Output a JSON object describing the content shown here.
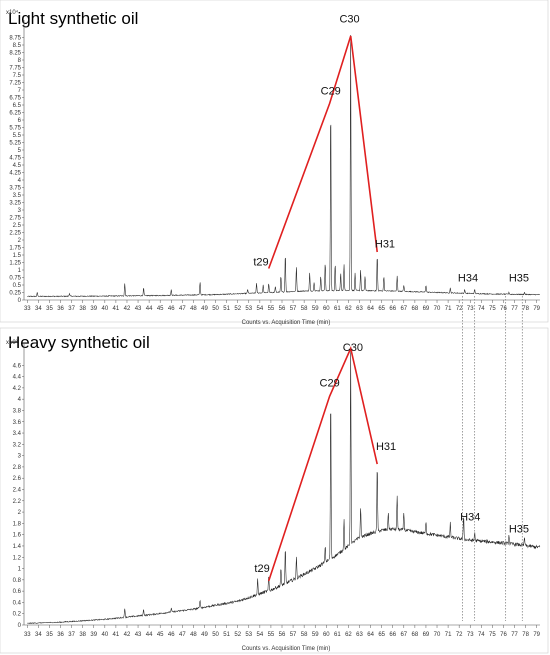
{
  "chart_data": [
    {
      "type": "line",
      "title": "Light synthetic oil",
      "xlabel": "Counts vs. Acquisition Time (min)",
      "y_scale_label": "x10⁴",
      "xlim": [
        32.7,
        79.3
      ],
      "ylim": [
        0,
        9
      ],
      "x_ticks": [
        "33",
        "34",
        "35",
        "36",
        "37",
        "38",
        "39",
        "40",
        "41",
        "42",
        "43",
        "44",
        "45",
        "46",
        "47",
        "48",
        "49",
        "50",
        "51",
        "52",
        "53",
        "54",
        "55",
        "56",
        "57",
        "58",
        "59",
        "60",
        "61",
        "62",
        "63",
        "64",
        "65",
        "66",
        "67",
        "68",
        "69",
        "70",
        "71",
        "72",
        "73",
        "74",
        "75",
        "76",
        "77",
        "78",
        "79"
      ],
      "y_ticks": [
        "0",
        "0.25",
        "0.5",
        "0.75",
        "1",
        "1.25",
        "1.5",
        "1.75",
        "2",
        "2.25",
        "2.5",
        "2.75",
        "3",
        "3.25",
        "3.5",
        "3.75",
        "4",
        "4.25",
        "4.5",
        "4.75",
        "5",
        "5.25",
        "5.5",
        "5.75",
        "6",
        "6.25",
        "6.5",
        "6.75",
        "7",
        "7.25",
        "7.5",
        "7.75",
        "8",
        "8.25",
        "8.5",
        "8.75"
      ],
      "baseline": [
        [
          33,
          0.12
        ],
        [
          40,
          0.13
        ],
        [
          45,
          0.15
        ],
        [
          50,
          0.18
        ],
        [
          55,
          0.25
        ],
        [
          58,
          0.3
        ],
        [
          62,
          0.32
        ],
        [
          66,
          0.3
        ],
        [
          70,
          0.25
        ],
        [
          75,
          0.2
        ],
        [
          79,
          0.18
        ]
      ],
      "peaks": [
        [
          33.9,
          0.25
        ],
        [
          36.8,
          0.22
        ],
        [
          41.8,
          0.55
        ],
        [
          43.5,
          0.4
        ],
        [
          46,
          0.35
        ],
        [
          48.6,
          0.6
        ],
        [
          52.9,
          0.35
        ],
        [
          53.7,
          0.55
        ],
        [
          54.3,
          0.5
        ],
        [
          54.8,
          0.55
        ],
        [
          55.4,
          0.45
        ],
        [
          55.9,
          0.8
        ],
        [
          56.3,
          1.55
        ],
        [
          57.3,
          1.1
        ],
        [
          58.5,
          0.9
        ],
        [
          58.9,
          0.6
        ],
        [
          59.5,
          0.8
        ],
        [
          59.9,
          1.25
        ],
        [
          60.4,
          6.6
        ],
        [
          60.8,
          1.2
        ],
        [
          61.3,
          0.9
        ],
        [
          61.6,
          1.2
        ],
        [
          62.2,
          8.85
        ],
        [
          62.6,
          0.9
        ],
        [
          63.1,
          1.0
        ],
        [
          63.5,
          0.8
        ],
        [
          64.6,
          1.5
        ],
        [
          65.2,
          0.8
        ],
        [
          66.4,
          0.8
        ],
        [
          67.0,
          0.5
        ],
        [
          69.0,
          0.5
        ],
        [
          71.2,
          0.4
        ],
        [
          72.5,
          0.35
        ],
        [
          73.4,
          0.35
        ],
        [
          76.5,
          0.25
        ],
        [
          77.9,
          0.25
        ]
      ],
      "trend_points": [
        {
          "label": "t29",
          "x": 54.8,
          "y": 1.05
        },
        {
          "label": "C29",
          "x": 60.3,
          "y": 6.55
        },
        {
          "label": "C30",
          "x": 62.2,
          "y": 8.8
        },
        {
          "label": "H31",
          "x": 64.6,
          "y": 1.6
        }
      ],
      "annotations": [
        {
          "label": "t29",
          "x": 54.1,
          "y": 1.15
        },
        {
          "label": "C29",
          "x": 60.4,
          "y": 6.85
        },
        {
          "label": "C30",
          "x": 62.1,
          "y": 9.25
        },
        {
          "label": "H31",
          "x": 65.3,
          "y": 1.75
        },
        {
          "label": "H34",
          "x": 72.8,
          "y": 0.62
        },
        {
          "label": "H35",
          "x": 77.4,
          "y": 0.62
        }
      ]
    },
    {
      "type": "line",
      "title": "Heavy synthetic oil",
      "xlabel": "Counts vs. Acquisition Time (min)",
      "y_scale_label": "x10³",
      "xlim": [
        32.7,
        79.3
      ],
      "ylim": [
        0,
        4.8
      ],
      "x_ticks": [
        "33",
        "34",
        "35",
        "36",
        "37",
        "38",
        "39",
        "40",
        "41",
        "42",
        "43",
        "44",
        "45",
        "46",
        "47",
        "48",
        "49",
        "50",
        "51",
        "52",
        "53",
        "54",
        "55",
        "56",
        "57",
        "58",
        "59",
        "60",
        "61",
        "62",
        "63",
        "64",
        "65",
        "66",
        "67",
        "68",
        "69",
        "70",
        "71",
        "72",
        "73",
        "74",
        "75",
        "76",
        "77",
        "78",
        "79"
      ],
      "y_ticks": [
        "0",
        "0.2",
        "0.4",
        "0.6",
        "0.8",
        "1",
        "1.2",
        "1.4",
        "1.6",
        "1.8",
        "2",
        "2.2",
        "2.4",
        "2.6",
        "2.8",
        "3",
        "3.2",
        "3.4",
        "3.6",
        "3.8",
        "4",
        "4.2",
        "4.4",
        "4.6"
      ],
      "baseline": [
        [
          33,
          0.03
        ],
        [
          36,
          0.05
        ],
        [
          40,
          0.1
        ],
        [
          44,
          0.18
        ],
        [
          48,
          0.28
        ],
        [
          52,
          0.42
        ],
        [
          55,
          0.62
        ],
        [
          57,
          0.8
        ],
        [
          59,
          1.0
        ],
        [
          61,
          1.25
        ],
        [
          62,
          1.4
        ],
        [
          63,
          1.55
        ],
        [
          64,
          1.62
        ],
        [
          65,
          1.68
        ],
        [
          66,
          1.7
        ],
        [
          67,
          1.68
        ],
        [
          69,
          1.62
        ],
        [
          71,
          1.56
        ],
        [
          73,
          1.5
        ],
        [
          75,
          1.47
        ],
        [
          77,
          1.43
        ],
        [
          79,
          1.38
        ]
      ],
      "peaks": [
        [
          41.8,
          0.3
        ],
        [
          43.5,
          0.28
        ],
        [
          46,
          0.3
        ],
        [
          48.6,
          0.45
        ],
        [
          53.8,
          0.8
        ],
        [
          54.8,
          0.85
        ],
        [
          55.9,
          1.0
        ],
        [
          56.3,
          1.35
        ],
        [
          57.3,
          1.2
        ],
        [
          59.9,
          1.4
        ],
        [
          60.4,
          4.1
        ],
        [
          61.6,
          1.9
        ],
        [
          62.2,
          4.95
        ],
        [
          63.1,
          2.1
        ],
        [
          64.6,
          2.85
        ],
        [
          65.6,
          2.0
        ],
        [
          66.4,
          2.3
        ],
        [
          67.0,
          2.0
        ],
        [
          69.0,
          1.85
        ],
        [
          71.2,
          1.8
        ],
        [
          72.4,
          1.95
        ],
        [
          73.4,
          1.65
        ],
        [
          76.5,
          1.6
        ],
        [
          77.9,
          1.55
        ]
      ],
      "trend_points": [
        {
          "label": "t29",
          "x": 54.8,
          "y": 0.78
        },
        {
          "label": "C29",
          "x": 60.3,
          "y": 4.05
        },
        {
          "label": "C30",
          "x": 62.2,
          "y": 4.9
        },
        {
          "label": "H31",
          "x": 64.6,
          "y": 2.85
        }
      ],
      "annotations": [
        {
          "label": "t29",
          "x": 54.2,
          "y": 0.94
        },
        {
          "label": "C29",
          "x": 60.3,
          "y": 4.22
        },
        {
          "label": "C30",
          "x": 62.4,
          "y": 4.85
        },
        {
          "label": "H31",
          "x": 65.4,
          "y": 3.1
        },
        {
          "label": "H34",
          "x": 73.0,
          "y": 1.85
        },
        {
          "label": "H35",
          "x": 77.4,
          "y": 1.64
        }
      ]
    }
  ],
  "reference_lines_x": [
    72.3,
    73.4,
    76.2,
    77.7
  ],
  "colors": {
    "trace": "#222222",
    "trend": "#e02020",
    "axis": "#555555",
    "reference": "#777777"
  }
}
